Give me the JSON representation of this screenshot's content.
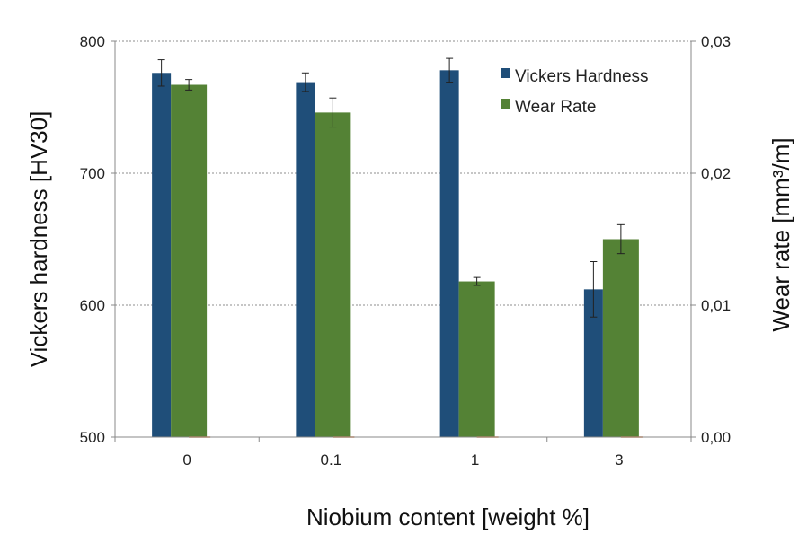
{
  "chart_data": {
    "type": "bar",
    "title": "",
    "categories": [
      "0",
      "0.1",
      "1",
      "3"
    ],
    "xlabel": "Niobium content [weight %]",
    "ylabel": "Vickers hardness [HV30]",
    "y2label": "Wear rate [mm³/m]",
    "ylim": [
      500,
      800
    ],
    "y2lim": [
      0,
      0.03
    ],
    "yticks": [
      "500",
      "600",
      "700",
      "800"
    ],
    "y2ticks": [
      "0,00",
      "0,01",
      "0,02",
      "0,03"
    ],
    "grid": true,
    "legend_position": "top-right",
    "series": [
      {
        "name": "Vickers Hardness",
        "axis": "left",
        "color": "#1f4e79",
        "values": [
          776,
          769,
          778,
          612
        ],
        "errors": [
          10,
          7,
          9,
          21
        ]
      },
      {
        "name": "Wear Rate",
        "axis": "right",
        "color": "#548235",
        "values": [
          0.0267,
          0.0246,
          0.0118,
          0.015
        ],
        "errors": [
          0.0004,
          0.0011,
          0.0003,
          0.0011
        ]
      }
    ]
  }
}
